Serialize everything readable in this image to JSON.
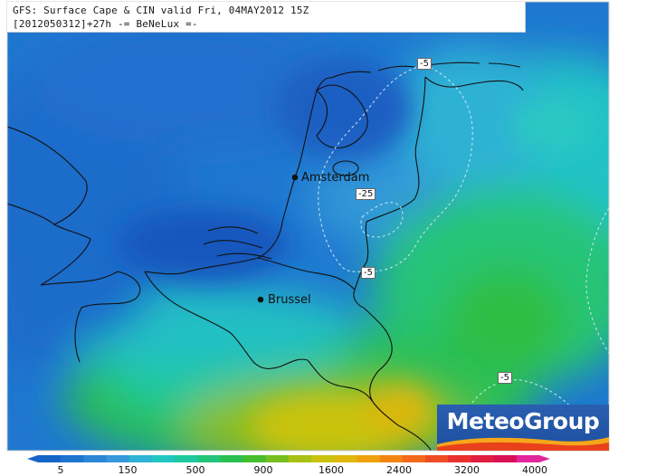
{
  "title": {
    "line1": "GFS: Surface Cape & CIN valid Fri, 04MAY2012 15Z",
    "line2": "[2012050312]+27h -= BeNeLux =-"
  },
  "cities": [
    {
      "name": "Amsterdam",
      "lat": 52.37,
      "lon": 4.9
    },
    {
      "name": "Brussel",
      "lat": 50.85,
      "lon": 4.35
    }
  ],
  "cin_labels": [
    "-5",
    "-25",
    "-5",
    "-5"
  ],
  "legend": {
    "ticks": [
      "5",
      "150",
      "500",
      "900",
      "1600",
      "2400",
      "3200",
      "4000"
    ],
    "colors": [
      "#1565c8",
      "#1e74cf",
      "#2c86d6",
      "#3798da",
      "#2fb2d4",
      "#21c6c0",
      "#1ec99f",
      "#22c47a",
      "#2abf4f",
      "#46bd2d",
      "#78be1e",
      "#a9c014",
      "#c9c30f",
      "#e0b90d",
      "#eea10e",
      "#f28512",
      "#f26a1a",
      "#ef4c24",
      "#e9302f",
      "#e01d3f",
      "#d80f55",
      "#e2259a"
    ]
  },
  "logo": {
    "text": "MeteoGroup"
  }
}
